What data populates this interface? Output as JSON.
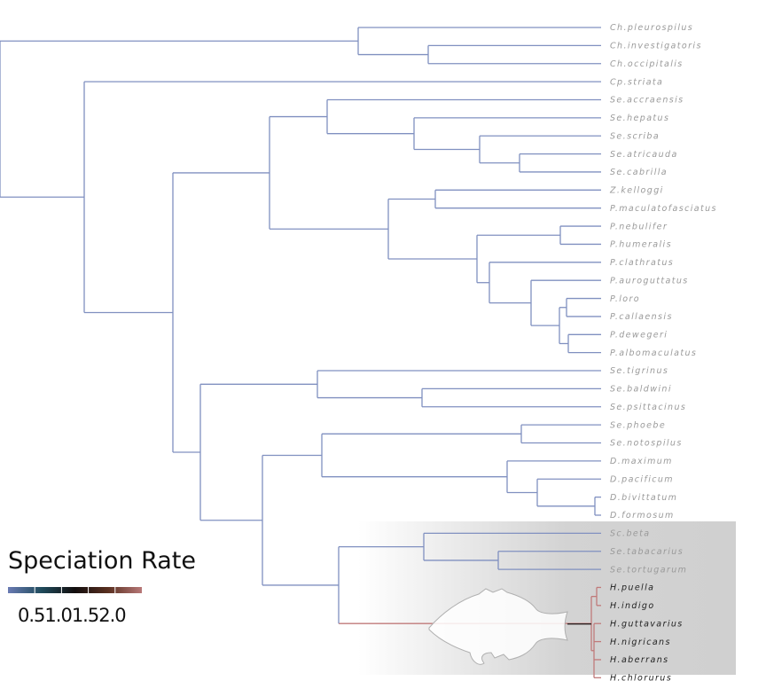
{
  "chart_data": {
    "type": "phylogenetic-tree",
    "legend": {
      "title": "Speciation Rate",
      "ticks": [
        "0.5",
        "1.0",
        "1.5",
        "2.0"
      ],
      "gradient": [
        "#6a7bb3",
        "#1f4b5c",
        "#120d0d",
        "#5a3020",
        "#b87878"
      ]
    },
    "colors": {
      "base_branch": "#8090c0",
      "fast_branch": "#c07a7a",
      "highlight_box": "#d0d0d0",
      "tip_text": "#9a9a9a",
      "tip_text_highlight": "#222222"
    },
    "highlighted_clade": "Hypoplectrus",
    "tips": [
      {
        "name": "Ch.pleurospilus",
        "rate": 0.5
      },
      {
        "name": "Ch.investigatoris",
        "rate": 0.5
      },
      {
        "name": "Ch.occipitalis",
        "rate": 0.5
      },
      {
        "name": "Cp.striata",
        "rate": 0.5
      },
      {
        "name": "Se.accraensis",
        "rate": 0.5
      },
      {
        "name": "Se.hepatus",
        "rate": 0.5
      },
      {
        "name": "Se.scriba",
        "rate": 0.5
      },
      {
        "name": "Se.atricauda",
        "rate": 0.5
      },
      {
        "name": "Se.cabrilla",
        "rate": 0.5
      },
      {
        "name": "Z.kelloggi",
        "rate": 0.5
      },
      {
        "name": "P.maculatofasciatus",
        "rate": 0.5
      },
      {
        "name": "P.nebulifer",
        "rate": 0.5
      },
      {
        "name": "P.humeralis",
        "rate": 0.5
      },
      {
        "name": "P.clathratus",
        "rate": 0.5
      },
      {
        "name": "P.auroguttatus",
        "rate": 0.5
      },
      {
        "name": "P.loro",
        "rate": 0.5
      },
      {
        "name": "P.callaensis",
        "rate": 0.5
      },
      {
        "name": "P.dewegeri",
        "rate": 0.5
      },
      {
        "name": "P.albomaculatus",
        "rate": 0.5
      },
      {
        "name": "Se.tigrinus",
        "rate": 0.5
      },
      {
        "name": "Se.baldwini",
        "rate": 0.5
      },
      {
        "name": "Se.psittacinus",
        "rate": 0.5
      },
      {
        "name": "Se.phoebe",
        "rate": 0.5
      },
      {
        "name": "Se.notospilus",
        "rate": 0.5
      },
      {
        "name": "D.maximum",
        "rate": 0.5
      },
      {
        "name": "D.pacificum",
        "rate": 0.5
      },
      {
        "name": "D.bivittatum",
        "rate": 0.5
      },
      {
        "name": "D.formosum",
        "rate": 0.5
      },
      {
        "name": "Sc.beta",
        "rate": 0.5
      },
      {
        "name": "Se.tabacarius",
        "rate": 0.5
      },
      {
        "name": "Se.tortugarum",
        "rate": 0.5
      },
      {
        "name": "H.puella",
        "rate": 2.0
      },
      {
        "name": "H.indigo",
        "rate": 2.0
      },
      {
        "name": "H.guttavarius",
        "rate": 2.0
      },
      {
        "name": "H.nigricans",
        "rate": 2.0
      },
      {
        "name": "H.aberrans",
        "rate": 2.0
      },
      {
        "name": "H.chlorurus",
        "rate": 2.0
      }
    ]
  }
}
